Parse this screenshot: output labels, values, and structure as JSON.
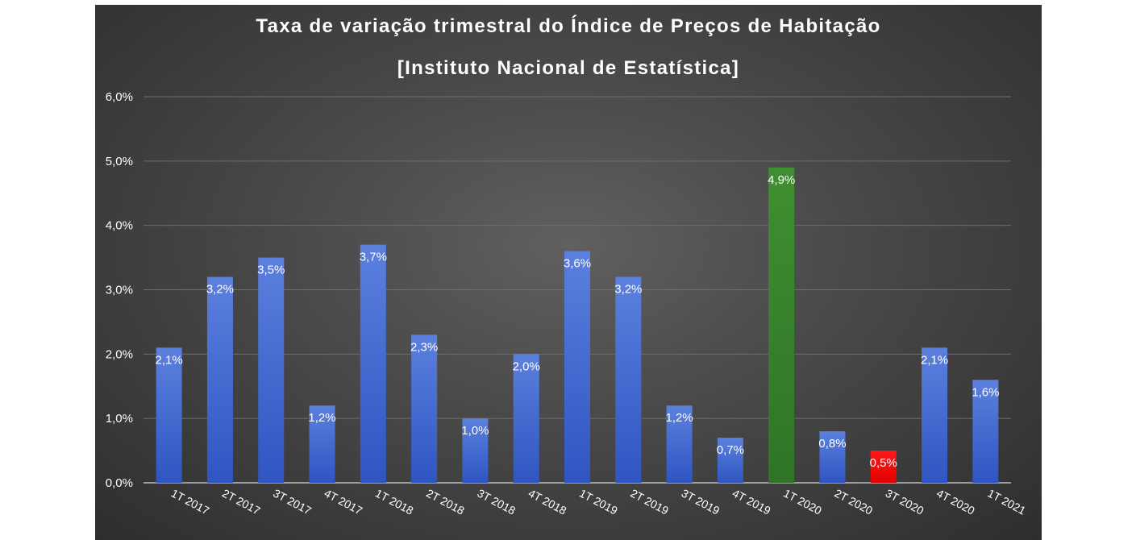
{
  "chart_data": {
    "type": "bar",
    "title": "Taxa de variação trimestral do Índice de Preços de Habitação",
    "subtitle": "[Instituto Nacional de Estatística]",
    "xlabel": "",
    "ylabel": "",
    "ylim": [
      0,
      6
    ],
    "yticks": [
      "0,0%",
      "1,0%",
      "2,0%",
      "3,0%",
      "4,0%",
      "5,0%",
      "6,0%"
    ],
    "grid": true,
    "legend": "none",
    "categories": [
      "1T 2017",
      "2T 2017",
      "3T 2017",
      "4T 2017",
      "1T 2018",
      "2T 2018",
      "3T 2018",
      "4T 2018",
      "1T 2019",
      "2T 2019",
      "3T 2019",
      "4T 2019",
      "1T 2020",
      "2T 2020",
      "3T 2020",
      "4T 2020",
      "1T 2021"
    ],
    "values": [
      2.1,
      3.2,
      3.5,
      1.2,
      3.7,
      2.3,
      1.0,
      2.0,
      3.6,
      3.2,
      1.2,
      0.7,
      4.9,
      0.8,
      0.5,
      2.1,
      1.6
    ],
    "data_labels": [
      "2,1%",
      "3,2%",
      "3,5%",
      "1,2%",
      "3,7%",
      "2,3%",
      "1,0%",
      "2,0%",
      "3,6%",
      "3,2%",
      "1,2%",
      "0,7%",
      "4,9%",
      "0,8%",
      "0,5%",
      "2,1%",
      "1,6%"
    ],
    "colors": {
      "default": "#4a6fd6",
      "max": "#3c8a2e",
      "min": "#ff0000"
    },
    "highlight": {
      "1T 2020": "max",
      "3T 2020": "min"
    }
  }
}
